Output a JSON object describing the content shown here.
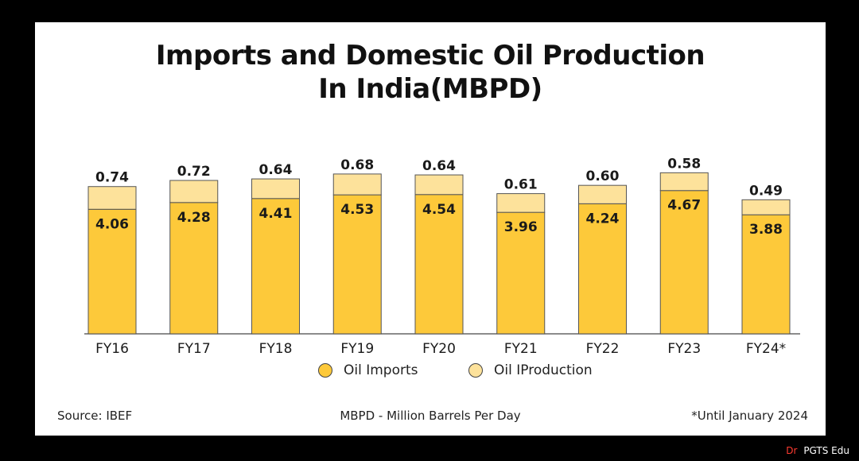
{
  "chart_data": {
    "type": "bar",
    "stacked": true,
    "title_line1": "Imports and Domestic Oil Production",
    "title_line2": "In India(MBPD)",
    "categories": [
      "FY16",
      "FY17",
      "FY18",
      "FY19",
      "FY20",
      "FY21",
      "FY22",
      "FY23",
      "FY24*"
    ],
    "series": [
      {
        "name": "Oil Imports",
        "values": [
          4.06,
          4.28,
          4.41,
          4.53,
          4.54,
          3.96,
          4.24,
          4.67,
          3.88
        ],
        "color": "#fdc93a"
      },
      {
        "name": "Oil IProduction",
        "values": [
          0.74,
          0.72,
          0.64,
          0.68,
          0.64,
          0.61,
          0.6,
          0.58,
          0.49
        ],
        "color": "#fde29b"
      }
    ],
    "value_labels": {
      "imports": [
        "4.06",
        "4.28",
        "4.41",
        "4.53",
        "4.54",
        "3.96",
        "4.24",
        "4.67",
        "3.88"
      ],
      "production": [
        "0.74",
        "0.72",
        "0.64",
        "0.68",
        "0.64",
        "0.61",
        "0.60",
        "0.58",
        "0.49"
      ]
    },
    "legend_position": "bottom",
    "grid": false
  },
  "footer": {
    "source": "Source: IBEF",
    "unit_note": "MBPD - Million Barrels Per Day",
    "date_note": "*Until January 2024"
  },
  "watermark": {
    "prefix": "Dr",
    "text": "PGTS Edu"
  },
  "colors": {
    "imports": "#fdc93a",
    "production": "#fde29b",
    "outline": "#555555",
    "background": "#000000",
    "card": "#ffffff"
  }
}
